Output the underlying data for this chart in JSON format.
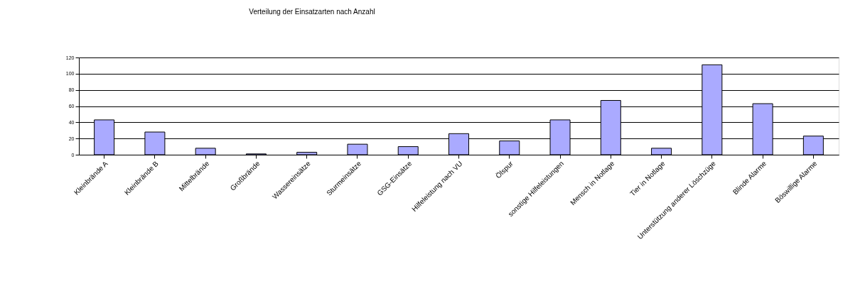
{
  "chart_data": {
    "type": "bar",
    "title": "Verteilung der Einsatzarten nach Anzahl",
    "categories": [
      "Kleinbrände A",
      "Kleinbrände B",
      "Mittelbrände",
      "Großbrände",
      "Wassereinsätze",
      "Sturmeinsätze",
      "GSG-Einsätze",
      "Hilfeleistung nach VU",
      "Ölspur",
      "sonstige Hilfeleistungen",
      "Mensch in Notlage",
      "Tier in Notlage",
      "Unterstützung anderer Löschzüge",
      "Blinde Alarme",
      "Böswillige Alarme"
    ],
    "values": [
      43,
      28,
      8,
      1,
      3,
      13,
      10,
      26,
      17,
      43,
      67,
      8,
      111,
      63,
      23
    ],
    "color": "#aaaaff",
    "ylim": [
      0,
      120
    ],
    "yticks": [
      0,
      20,
      40,
      60,
      80,
      100,
      120
    ],
    "grid": "y"
  }
}
